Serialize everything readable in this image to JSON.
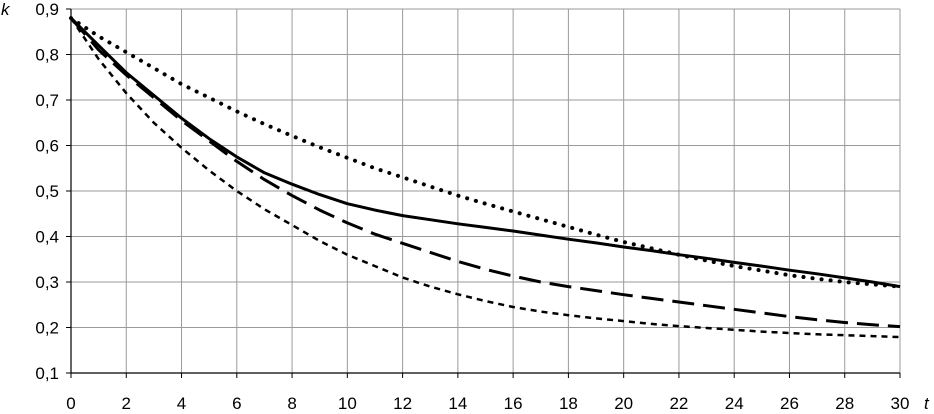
{
  "chart_data": {
    "type": "line",
    "xlabel": "t",
    "ylabel": "k",
    "xlim": [
      0,
      30
    ],
    "ylim": [
      0.1,
      0.9
    ],
    "x_ticks": [
      "0",
      "2",
      "4",
      "6",
      "8",
      "10",
      "12",
      "14",
      "16",
      "18",
      "20",
      "22",
      "24",
      "26",
      "28",
      "30"
    ],
    "y_ticks": [
      "0,1",
      "0,2",
      "0,3",
      "0,4",
      "0,5",
      "0,6",
      "0,7",
      "0,8",
      "0,9"
    ],
    "grid": true,
    "legend": "none",
    "series": [
      {
        "style": "solid",
        "x": [
          0,
          1,
          2,
          3,
          4,
          5,
          6,
          7,
          8,
          9,
          10,
          11,
          12,
          13,
          14,
          15,
          16,
          17,
          18,
          19,
          20,
          21,
          22,
          23,
          24,
          25,
          26,
          27,
          28,
          29,
          30
        ],
        "y": [
          0.88,
          0.82,
          0.76,
          0.71,
          0.66,
          0.615,
          0.575,
          0.54,
          0.515,
          0.492,
          0.472,
          0.458,
          0.446,
          0.437,
          0.428,
          0.42,
          0.412,
          0.403,
          0.394,
          0.386,
          0.377,
          0.369,
          0.36,
          0.352,
          0.343,
          0.335,
          0.326,
          0.318,
          0.309,
          0.3,
          0.29
        ]
      },
      {
        "style": "dotted",
        "x": [
          0,
          1,
          2,
          3,
          4,
          5,
          6,
          7,
          8,
          9,
          10,
          11,
          12,
          13,
          14,
          15,
          16,
          17,
          18,
          19,
          20,
          21,
          22,
          23,
          24,
          25,
          26,
          27,
          28,
          29,
          30
        ],
        "y": [
          0.88,
          0.84,
          0.805,
          0.77,
          0.735,
          0.705,
          0.675,
          0.647,
          0.621,
          0.596,
          0.573,
          0.55,
          0.53,
          0.51,
          0.49,
          0.472,
          0.455,
          0.438,
          0.421,
          0.404,
          0.388,
          0.374,
          0.36,
          0.347,
          0.335,
          0.325,
          0.315,
          0.307,
          0.3,
          0.295,
          0.29
        ]
      },
      {
        "style": "long-dash",
        "x": [
          0,
          1,
          2,
          3,
          4,
          5,
          6,
          7,
          8,
          9,
          10,
          11,
          12,
          13,
          14,
          15,
          16,
          17,
          18,
          19,
          20,
          21,
          22,
          23,
          24,
          25,
          26,
          27,
          28,
          29,
          30
        ],
        "y": [
          0.88,
          0.81,
          0.755,
          0.705,
          0.655,
          0.61,
          0.565,
          0.525,
          0.49,
          0.458,
          0.43,
          0.405,
          0.385,
          0.365,
          0.345,
          0.328,
          0.313,
          0.3,
          0.29,
          0.281,
          0.272,
          0.264,
          0.256,
          0.248,
          0.24,
          0.232,
          0.224,
          0.217,
          0.211,
          0.206,
          0.202
        ]
      },
      {
        "style": "short-dash",
        "x": [
          0,
          1,
          2,
          3,
          4,
          5,
          6,
          7,
          8,
          9,
          10,
          11,
          12,
          13,
          14,
          15,
          16,
          17,
          18,
          19,
          20,
          21,
          22,
          23,
          24,
          25,
          26,
          27,
          28,
          29,
          30
        ],
        "y": [
          0.88,
          0.79,
          0.715,
          0.65,
          0.595,
          0.545,
          0.5,
          0.46,
          0.425,
          0.39,
          0.36,
          0.335,
          0.31,
          0.29,
          0.273,
          0.258,
          0.245,
          0.235,
          0.227,
          0.22,
          0.214,
          0.208,
          0.203,
          0.199,
          0.195,
          0.191,
          0.188,
          0.185,
          0.183,
          0.181,
          0.179
        ]
      }
    ]
  }
}
